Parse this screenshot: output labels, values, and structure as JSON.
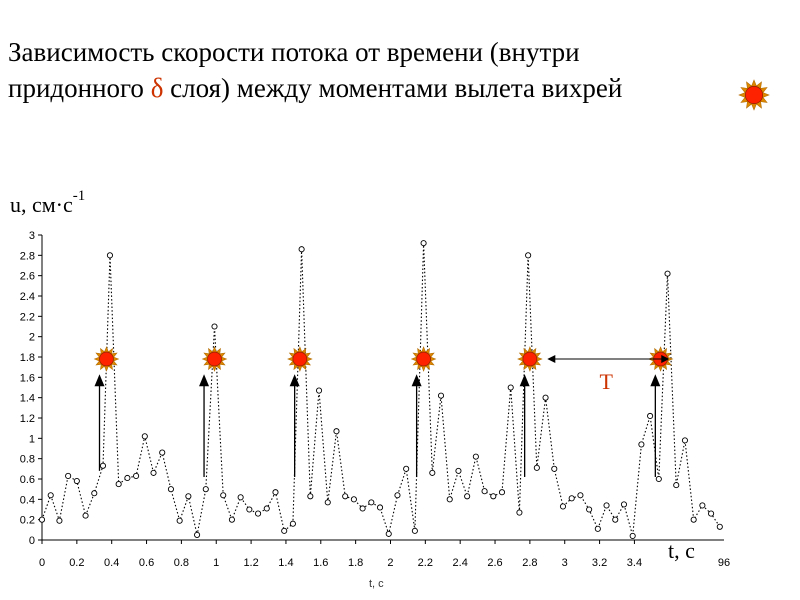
{
  "title": {
    "line1": "Зависимость скорости потока от времени (внутри",
    "line2_before": "придонного ",
    "line2_delta": "δ",
    "line2_after": " слоя) между моментами вылета вихрей"
  },
  "colors": {
    "accent": "#cc3300",
    "burst_fill": "#ff2200",
    "burst_ray": "#dd8800",
    "line": "#000000"
  },
  "chart_data": {
    "type": "scatter",
    "y_axis_title": "u, см·с",
    "y_axis_title_exp": "-1",
    "x_axis_title_big": "t, c",
    "x_axis_title_small": "t, c",
    "x_tick_labels": [
      "0",
      "0.2",
      "0.4",
      "0.6",
      "0.8",
      "1",
      "1.2",
      "1.4",
      "1.6",
      "1.8",
      "2",
      "2.2",
      "2.4",
      "2.6",
      "2.8",
      "3",
      "3.2",
      "3.4"
    ],
    "x_tick_extra": "96",
    "y_tick_labels": [
      "0",
      "0.2",
      "0.4",
      "0.6",
      "0.8",
      "1",
      "1.2",
      "1.4",
      "1.6",
      "1.8",
      "2",
      "2.2",
      "2.4",
      "2.6",
      "2.8",
      "3"
    ],
    "xlim": [
      0,
      3.96
    ],
    "ylim": [
      0,
      3
    ],
    "grid": false,
    "period_label": "T",
    "period_arrow": [
      2.9,
      3.6
    ],
    "event_level": 1.78,
    "event_times": [
      0.37,
      0.99,
      1.48,
      2.19,
      2.8,
      3.55
    ],
    "onset_arrows": [
      {
        "x": 0.33,
        "y_from": 0.68,
        "y_to": 1.63
      },
      {
        "x": 0.93,
        "y_from": 0.62,
        "y_to": 1.63
      },
      {
        "x": 1.45,
        "y_from": 0.62,
        "y_to": 1.63
      },
      {
        "x": 2.15,
        "y_from": 0.62,
        "y_to": 1.63
      },
      {
        "x": 2.77,
        "y_from": 0.62,
        "y_to": 1.63
      },
      {
        "x": 3.52,
        "y_from": 0.62,
        "y_to": 1.63
      }
    ],
    "series": [
      {
        "x": [
          0.0,
          0.05,
          0.1,
          0.15,
          0.2,
          0.25,
          0.3,
          0.35,
          0.39,
          0.44,
          0.49,
          0.54,
          0.59,
          0.64,
          0.69,
          0.74,
          0.79,
          0.84,
          0.89,
          0.94,
          0.99,
          1.04,
          1.09,
          1.14,
          1.19,
          1.24,
          1.29,
          1.34,
          1.39,
          1.44,
          1.49,
          1.54,
          1.59,
          1.64,
          1.69,
          1.74,
          1.79,
          1.84,
          1.89,
          1.94,
          1.99,
          2.04,
          2.09,
          2.14,
          2.19,
          2.24,
          2.29,
          2.34,
          2.39,
          2.44,
          2.49,
          2.54,
          2.59,
          2.64,
          2.69,
          2.74,
          2.79,
          2.84,
          2.89,
          2.94,
          2.99,
          3.04,
          3.09,
          3.14,
          3.19,
          3.24,
          3.29,
          3.34,
          3.39,
          3.44,
          3.49,
          3.54,
          3.59,
          3.64,
          3.69,
          3.74,
          3.79,
          3.84,
          3.89
        ],
        "y": [
          0.2,
          0.44,
          0.19,
          0.63,
          0.58,
          0.24,
          0.46,
          0.73,
          2.8,
          0.55,
          0.61,
          0.63,
          1.02,
          0.66,
          0.86,
          0.5,
          0.19,
          0.43,
          0.05,
          0.5,
          2.1,
          0.44,
          0.2,
          0.42,
          0.3,
          0.26,
          0.31,
          0.47,
          0.09,
          0.16,
          2.86,
          0.43,
          1.47,
          0.37,
          1.07,
          0.43,
          0.4,
          0.31,
          0.37,
          0.32,
          0.06,
          0.44,
          0.7,
          0.09,
          2.92,
          0.66,
          1.42,
          0.4,
          0.68,
          0.43,
          0.82,
          0.48,
          0.43,
          0.47,
          1.5,
          0.27,
          2.8,
          0.71,
          1.4,
          0.7,
          0.33,
          0.41,
          0.44,
          0.3,
          0.11,
          0.34,
          0.2,
          0.35,
          0.04,
          0.94,
          1.22,
          0.6,
          2.62,
          0.54,
          0.98,
          0.2,
          0.34,
          0.26,
          0.13
        ]
      }
    ]
  }
}
